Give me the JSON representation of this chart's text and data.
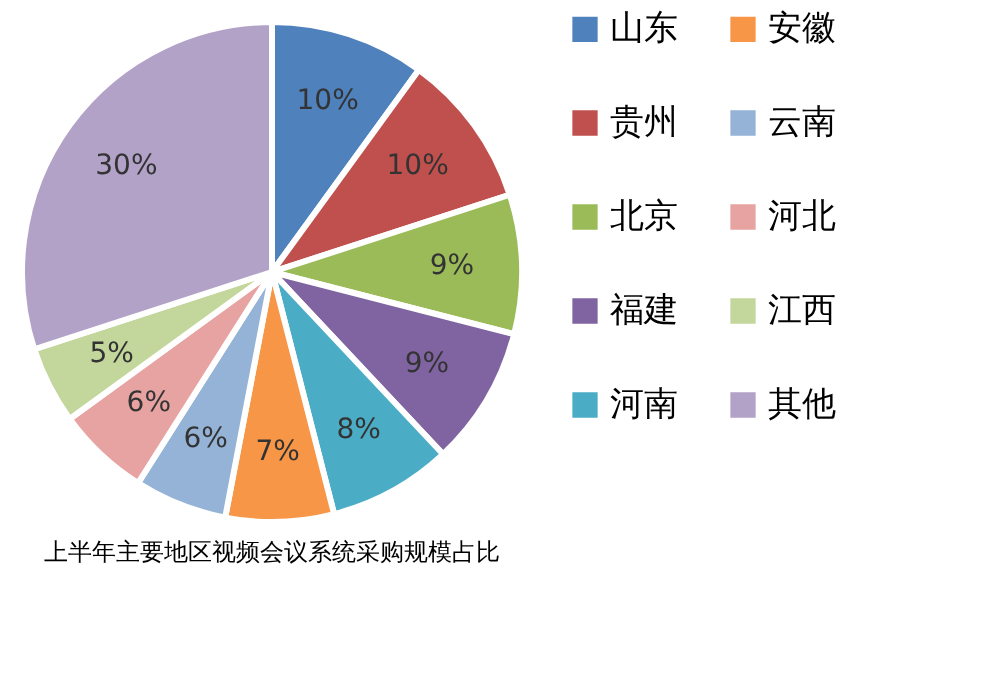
{
  "chart_data": {
    "type": "pie",
    "title": "上半年主要地区视频会议系统采购规模占比",
    "categories": [
      "山东",
      "贵州",
      "北京",
      "福建",
      "河南",
      "安徽",
      "云南",
      "河北",
      "江西",
      "其他"
    ],
    "values": [
      10,
      10,
      9,
      9,
      8,
      7,
      6,
      6,
      5,
      30
    ],
    "value_labels": [
      "10%",
      "10%",
      "9%",
      "9%",
      "8%",
      "7%",
      "6%",
      "6%",
      "5%",
      "30%"
    ],
    "colors": [
      "#4f81bd",
      "#c0504d",
      "#9bbb59",
      "#8064a2",
      "#4bacc6",
      "#f79646",
      "#95b3d7",
      "#e6a3a1",
      "#c3d69b",
      "#b2a2c7"
    ],
    "legend": "right"
  }
}
